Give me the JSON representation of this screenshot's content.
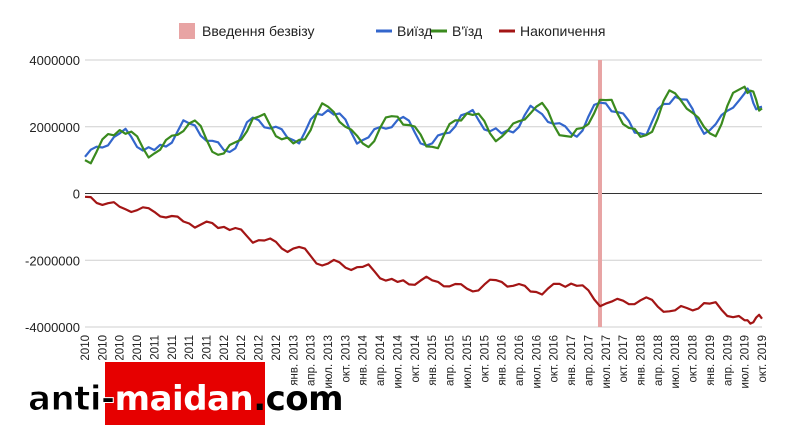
{
  "chart_data": {
    "type": "line",
    "title": "",
    "xlabel": "",
    "ylabel": "",
    "ylim": [
      -4000000,
      4000000
    ],
    "yticks": [
      4000000,
      2000000,
      0,
      -2000000,
      -4000000
    ],
    "ytick_labels": [
      "4000000",
      "2000000",
      "0",
      "-2000000",
      "-4000000"
    ],
    "legend_position": "top",
    "grid": "horizontal",
    "x_start": "2010-01",
    "x_end": "2019-10",
    "x_tick_labels": [
      "2010",
      "2010",
      "2010",
      "2010",
      "2011",
      "2011",
      "2011",
      "2011",
      "2012",
      "2012",
      "2012",
      "2012",
      "янв. 2013",
      "апр. 2013",
      "июл. 2013",
      "окт. 2013",
      "янв. 2014",
      "апр. 2014",
      "июл. 2014",
      "окт. 2014",
      "янв. 2015",
      "апр. 2015",
      "июл. 2015",
      "окт. 2015",
      "янв. 2016",
      "апр. 2016",
      "июл. 2016",
      "окт. 2016",
      "янв. 2017",
      "апр. 2017",
      "июл. 2017",
      "окт. 2017",
      "янв. 2018",
      "апр. 2018",
      "июл. 2018",
      "окт. 2018",
      "янв. 2019",
      "апр. 2019",
      "июл. 2019",
      "окт. 2019"
    ],
    "marker": {
      "name": "Введення безвізу",
      "x": "2017-06",
      "color": "#e8a4a4"
    },
    "series": [
      {
        "name": "Виїзд",
        "color": "#3366cc",
        "points": [
          [
            "2010-01",
            1100000
          ],
          [
            "2010-07",
            1800000
          ],
          [
            "2011-01",
            1300000
          ],
          [
            "2011-07",
            2100000
          ],
          [
            "2012-01",
            1300000
          ],
          [
            "2012-07",
            2200000
          ],
          [
            "2013-01",
            1600000
          ],
          [
            "2013-07",
            2500000
          ],
          [
            "2014-01",
            1600000
          ],
          [
            "2014-07",
            2200000
          ],
          [
            "2015-01",
            1500000
          ],
          [
            "2015-07",
            2400000
          ],
          [
            "2016-01",
            1800000
          ],
          [
            "2016-07",
            2500000
          ],
          [
            "2017-01",
            1800000
          ],
          [
            "2017-07",
            2700000
          ],
          [
            "2018-01",
            1800000
          ],
          [
            "2018-07",
            2900000
          ],
          [
            "2019-01",
            1900000
          ],
          [
            "2019-07",
            3000000
          ],
          [
            "2019-10",
            2600000
          ]
        ]
      },
      {
        "name": "В'їзд",
        "color": "#3a8a1e",
        "points": [
          [
            "2010-01",
            1000000
          ],
          [
            "2010-07",
            1900000
          ],
          [
            "2011-01",
            1200000
          ],
          [
            "2011-07",
            2100000
          ],
          [
            "2012-01",
            1200000
          ],
          [
            "2012-07",
            2300000
          ],
          [
            "2013-01",
            1500000
          ],
          [
            "2013-07",
            2600000
          ],
          [
            "2014-01",
            1500000
          ],
          [
            "2014-07",
            2300000
          ],
          [
            "2015-01",
            1400000
          ],
          [
            "2015-07",
            2400000
          ],
          [
            "2016-01",
            1700000
          ],
          [
            "2016-07",
            2600000
          ],
          [
            "2017-01",
            1700000
          ],
          [
            "2017-07",
            2800000
          ],
          [
            "2018-01",
            1700000
          ],
          [
            "2018-07",
            3000000
          ],
          [
            "2019-01",
            1800000
          ],
          [
            "2019-07",
            3200000
          ],
          [
            "2019-10",
            2550000
          ]
        ]
      },
      {
        "name": "Накопичення",
        "color": "#a31515",
        "points": [
          [
            "2010-01",
            -100000
          ],
          [
            "2010-07",
            -400000
          ],
          [
            "2011-01",
            -550000
          ],
          [
            "2011-07",
            -900000
          ],
          [
            "2012-01",
            -1000000
          ],
          [
            "2012-07",
            -1400000
          ],
          [
            "2013-01",
            -1650000
          ],
          [
            "2013-07",
            -2100000
          ],
          [
            "2014-01",
            -2200000
          ],
          [
            "2014-07",
            -2650000
          ],
          [
            "2015-01",
            -2600000
          ],
          [
            "2015-07",
            -2850000
          ],
          [
            "2016-01",
            -2650000
          ],
          [
            "2016-07",
            -2950000
          ],
          [
            "2017-01",
            -2700000
          ],
          [
            "2017-07",
            -3300000
          ],
          [
            "2018-01",
            -3200000
          ],
          [
            "2018-07",
            -3500000
          ],
          [
            "2019-01",
            -3300000
          ],
          [
            "2019-07",
            -3800000
          ],
          [
            "2019-10",
            -3750000
          ]
        ]
      }
    ]
  },
  "watermark": {
    "part1": "anti-",
    "part2": "maidan",
    "part3": ".com"
  }
}
